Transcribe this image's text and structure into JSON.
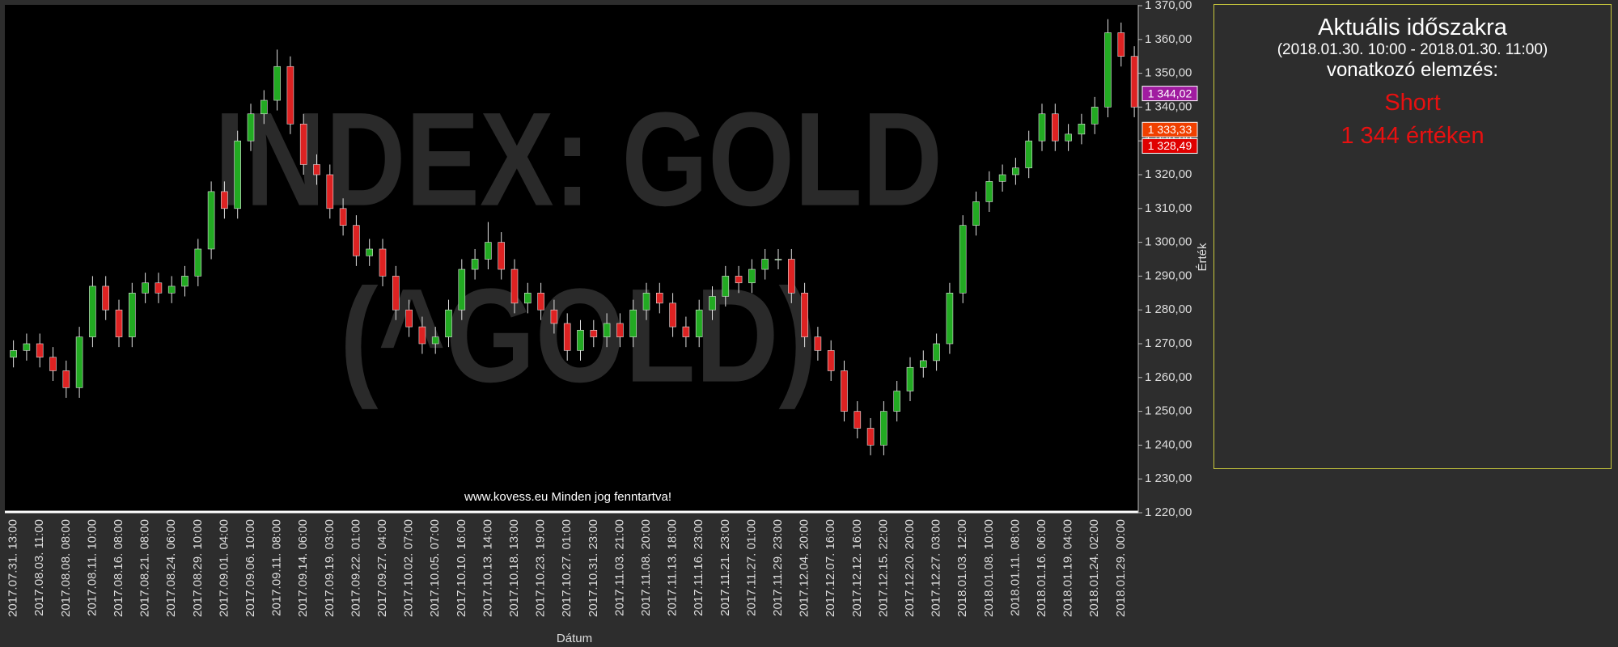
{
  "chart_data": {
    "type": "candlestick",
    "watermark": [
      "INDEX: GOLD",
      "(^GOLD)"
    ],
    "footer": "www.kovess.eu Minden jog fenntartva!",
    "x_label": "Dátum",
    "y_label": "Érték",
    "up_color": "#22aa22",
    "down_color": "#dd2222",
    "wick_color": "#e0e0e0",
    "categories": [
      "2017.07.31. 13:00",
      null,
      "2017.08.03. 11:00",
      null,
      "2017.08.08. 08:00",
      null,
      "2017.08.11. 10:00",
      null,
      "2017.08.16. 08:00",
      null,
      "2017.08.21. 08:00",
      null,
      "2017.08.24. 06:00",
      null,
      "2017.08.29. 10:00",
      null,
      "2017.09.01. 04:00",
      null,
      "2017.09.06. 10:00",
      null,
      "2017.09.11. 08:00",
      null,
      "2017.09.14. 06:00",
      null,
      "2017.09.19. 03:00",
      null,
      "2017.09.22. 01:00",
      null,
      "2017.09.27. 04:00",
      null,
      "2017.10.02. 07:00",
      null,
      "2017.10.05. 07:00",
      null,
      "2017.10.10. 16:00",
      null,
      "2017.10.13. 14:00",
      null,
      "2017.10.18. 13:00",
      null,
      "2017.10.23. 19:00",
      null,
      "2017.10.27. 01:00",
      null,
      "2017.10.31. 23:00",
      null,
      "2017.11.03. 21:00",
      null,
      "2017.11.08. 20:00",
      null,
      "2017.11.13. 18:00",
      null,
      "2017.11.16. 23:00",
      null,
      "2017.11.21. 23:00",
      null,
      "2017.11.27. 01:00",
      null,
      "2017.11.29. 23:00",
      null,
      "2017.12.04. 20:00",
      null,
      "2017.12.07. 16:00",
      null,
      "2017.12.12. 16:00",
      null,
      "2017.12.15. 22:00",
      null,
      "2017.12.20. 20:00",
      null,
      "2017.12.27. 03:00",
      null,
      "2018.01.03. 12:00",
      null,
      "2018.01.08. 10:00",
      null,
      "2018.01.11. 08:00",
      null,
      "2018.01.16. 06:00",
      null,
      "2018.01.19. 04:00",
      null,
      "2018.01.24. 02:00",
      null,
      "2018.01.29. 00:00",
      null
    ],
    "open": [
      1266,
      1268,
      1270,
      1266,
      1262,
      1257,
      1272,
      1287,
      1280,
      1272,
      1285,
      1288,
      1285,
      1287,
      1290,
      1298,
      1315,
      1310,
      1330,
      1338,
      1342,
      1352,
      1335,
      1323,
      1320,
      1310,
      1305,
      1296,
      1298,
      1290,
      1280,
      1275,
      1270,
      1272,
      1280,
      1292,
      1295,
      1300,
      1292,
      1282,
      1285,
      1280,
      1276,
      1268,
      1274,
      1272,
      1276,
      1272,
      1280,
      1285,
      1282,
      1275,
      1272,
      1280,
      1284,
      1290,
      1288,
      1292,
      1295,
      1295,
      1285,
      1272,
      1268,
      1262,
      1250,
      1245,
      1240,
      1250,
      1256,
      1263,
      1265,
      1270,
      1285,
      1305,
      1312,
      1318,
      1320,
      1322,
      1330,
      1338,
      1330,
      1332,
      1335,
      1340,
      1362,
      1355
    ],
    "high": [
      1271,
      1273,
      1273,
      1269,
      1265,
      1275,
      1290,
      1290,
      1283,
      1288,
      1291,
      1291,
      1290,
      1293,
      1301,
      1318,
      1318,
      1333,
      1341,
      1345,
      1357,
      1355,
      1338,
      1326,
      1323,
      1313,
      1308,
      1301,
      1301,
      1293,
      1283,
      1278,
      1275,
      1283,
      1295,
      1298,
      1306,
      1303,
      1295,
      1288,
      1288,
      1283,
      1279,
      1277,
      1277,
      1279,
      1279,
      1283,
      1288,
      1288,
      1285,
      1278,
      1283,
      1287,
      1293,
      1293,
      1295,
      1298,
      1298,
      1298,
      1288,
      1275,
      1271,
      1265,
      1253,
      1248,
      1253,
      1259,
      1266,
      1268,
      1273,
      1288,
      1308,
      1315,
      1321,
      1323,
      1325,
      1333,
      1341,
      1341,
      1335,
      1338,
      1343,
      1366,
      1365,
      1358
    ],
    "low": [
      1263,
      1265,
      1263,
      1259,
      1254,
      1254,
      1269,
      1277,
      1269,
      1269,
      1282,
      1282,
      1282,
      1284,
      1287,
      1295,
      1307,
      1307,
      1327,
      1335,
      1339,
      1332,
      1320,
      1317,
      1307,
      1302,
      1293,
      1293,
      1287,
      1277,
      1272,
      1267,
      1267,
      1269,
      1277,
      1289,
      1292,
      1289,
      1279,
      1279,
      1277,
      1273,
      1265,
      1265,
      1269,
      1269,
      1269,
      1269,
      1277,
      1279,
      1272,
      1269,
      1269,
      1277,
      1281,
      1285,
      1285,
      1289,
      1292,
      1282,
      1269,
      1265,
      1259,
      1247,
      1242,
      1237,
      1237,
      1247,
      1253,
      1260,
      1262,
      1267,
      1282,
      1302,
      1309,
      1315,
      1317,
      1319,
      1327,
      1327,
      1327,
      1329,
      1332,
      1337,
      1352,
      1337
    ],
    "close": [
      1268,
      1270,
      1266,
      1262,
      1257,
      1272,
      1287,
      1280,
      1272,
      1285,
      1288,
      1285,
      1287,
      1290,
      1298,
      1315,
      1310,
      1330,
      1338,
      1342,
      1352,
      1335,
      1323,
      1320,
      1310,
      1305,
      1296,
      1298,
      1290,
      1280,
      1275,
      1270,
      1272,
      1280,
      1292,
      1295,
      1300,
      1292,
      1282,
      1285,
      1280,
      1276,
      1268,
      1274,
      1272,
      1276,
      1272,
      1280,
      1285,
      1282,
      1275,
      1272,
      1280,
      1284,
      1290,
      1288,
      1292,
      1295,
      1295,
      1285,
      1272,
      1268,
      1262,
      1250,
      1245,
      1240,
      1250,
      1256,
      1263,
      1265,
      1270,
      1285,
      1305,
      1312,
      1318,
      1320,
      1322,
      1330,
      1338,
      1330,
      1332,
      1335,
      1340,
      1362,
      1355,
      1340
    ],
    "ylim": [
      1220,
      1370
    ],
    "yticks": [
      {
        "value": 1370,
        "label": "1 370,00"
      },
      {
        "value": 1360,
        "label": "1 360,00"
      },
      {
        "value": 1350,
        "label": "1 350,00"
      },
      {
        "value": 1340,
        "label": "1 340,00"
      },
      {
        "value": 1330,
        "label": "1 330,00"
      },
      {
        "value": 1320,
        "label": "1 320,00"
      },
      {
        "value": 1310,
        "label": "1 310,00"
      },
      {
        "value": 1300,
        "label": "1 300,00"
      },
      {
        "value": 1290,
        "label": "1 290,00"
      },
      {
        "value": 1280,
        "label": "1 280,00"
      },
      {
        "value": 1270,
        "label": "1 270,00"
      },
      {
        "value": 1260,
        "label": "1 260,00"
      },
      {
        "value": 1250,
        "label": "1 250,00"
      },
      {
        "value": 1240,
        "label": "1 240,00"
      },
      {
        "value": 1230,
        "label": "1 230,00"
      },
      {
        "value": 1220,
        "label": "1 220,00"
      }
    ],
    "price_tags": [
      {
        "value": 1344.02,
        "label": "1 344,02",
        "color": "#a01ca0"
      },
      {
        "value": 1333.33,
        "label": "1 333,33",
        "color": "#f04000"
      },
      {
        "value": 1328.49,
        "label": "1 328,49",
        "color": "#e00000"
      }
    ]
  },
  "panel": {
    "title": "Aktuális időszakra",
    "period": "(2018.01.30. 10:00 - 2018.01.30. 11:00)",
    "subtitle": "vonatkozó elemzés:",
    "signal": "Short",
    "level": "1 344 értéken"
  }
}
